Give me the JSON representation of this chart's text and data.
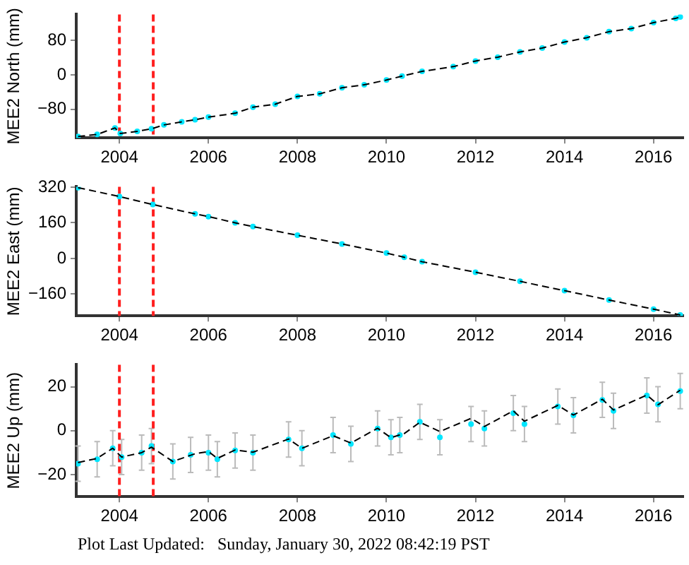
{
  "chart_data": [
    {
      "type": "scatter",
      "ylabel": "MEE2 North (mm)",
      "xlim": [
        2003.03,
        2016.67
      ],
      "xticks": [
        2004,
        2006,
        2008,
        2010,
        2012,
        2014,
        2016
      ],
      "ylim": [
        -146,
        140
      ],
      "yticks": [
        -80,
        0,
        80
      ],
      "grid": false,
      "legend": false,
      "marker": "circle",
      "ref_lines": [
        {
          "axis": "x",
          "value": 2004.0,
          "color": "#ff2020",
          "line_style": "dashed"
        },
        {
          "axis": "x",
          "value": 2004.76,
          "color": "#ff2020",
          "line_style": "dashed"
        }
      ],
      "series": [
        {
          "type": "scatter",
          "color": "#00e6ff",
          "x": [
            2003.07,
            2003.5,
            2003.9,
            2004.02,
            2004.4,
            2004.72,
            2005.0,
            2005.4,
            2005.7,
            2006.0,
            2006.6,
            2007.0,
            2007.5,
            2008.0,
            2008.5,
            2009.0,
            2009.5,
            2010.0,
            2010.35,
            2010.8,
            2011.5,
            2012.0,
            2012.5,
            2013.0,
            2013.5,
            2014.0,
            2014.5,
            2015.0,
            2015.5,
            2016.0,
            2016.5,
            2016.6
          ],
          "values": [
            -143,
            -138,
            -123,
            -136,
            -131,
            -125,
            -116,
            -109,
            -104,
            -98,
            -89,
            -75,
            -68,
            -50,
            -44,
            -30,
            -23,
            -12,
            -3,
            8,
            19,
            32,
            41,
            53,
            62,
            76,
            86,
            100,
            107,
            121,
            131,
            134
          ]
        },
        {
          "type": "line",
          "color": "#000000",
          "line_style": "dashed",
          "marker": "none",
          "x": [
            2003.07,
            2003.5,
            2003.9,
            2004.02,
            2004.4,
            2004.72,
            2005.0,
            2005.4,
            2005.7,
            2006.0,
            2006.6,
            2007.0,
            2007.5,
            2008.0,
            2008.5,
            2009.0,
            2009.5,
            2010.0,
            2010.35,
            2010.8,
            2011.5,
            2012.0,
            2012.5,
            2013.0,
            2013.5,
            2014.0,
            2014.5,
            2015.0,
            2015.5,
            2016.0,
            2016.5,
            2016.6
          ],
          "values": [
            -143,
            -138,
            -123,
            -136,
            -131,
            -125,
            -116,
            -109,
            -104,
            -98,
            -89,
            -75,
            -68,
            -50,
            -44,
            -30,
            -23,
            -12,
            -3,
            8,
            19,
            32,
            41,
            53,
            62,
            76,
            86,
            100,
            107,
            121,
            131,
            134
          ]
        }
      ]
    },
    {
      "type": "scatter",
      "ylabel": "MEE2 East (mm)",
      "xlim": [
        2003.03,
        2016.67
      ],
      "xticks": [
        2004,
        2006,
        2008,
        2010,
        2012,
        2014,
        2016
      ],
      "ylim": [
        -258,
        322
      ],
      "yticks": [
        -160,
        0,
        160,
        320
      ],
      "grid": false,
      "legend": false,
      "marker": "circle",
      "ref_lines": [
        {
          "axis": "x",
          "value": 2004.0,
          "color": "#ff2020",
          "line_style": "dashed"
        },
        {
          "axis": "x",
          "value": 2004.76,
          "color": "#ff2020",
          "line_style": "dashed"
        }
      ],
      "series": [
        {
          "type": "scatter",
          "color": "#00e6ff",
          "x": [
            2003.07,
            2004.0,
            2004.75,
            2005.7,
            2006.0,
            2006.6,
            2007.0,
            2008.0,
            2009.0,
            2010.0,
            2010.4,
            2010.8,
            2012.0,
            2013.0,
            2014.0,
            2015.0,
            2016.0,
            2016.6
          ],
          "values": [
            318,
            278,
            242,
            200,
            188,
            160,
            143,
            104,
            65,
            24,
            5,
            -15,
            -62,
            -103,
            -145,
            -187,
            -228,
            -254
          ]
        },
        {
          "type": "line",
          "color": "#000000",
          "line_style": "dashed",
          "marker": "none",
          "x": [
            2003.07,
            2004.0,
            2004.75,
            2005.7,
            2006.0,
            2006.6,
            2007.0,
            2008.0,
            2009.0,
            2010.0,
            2010.4,
            2010.8,
            2012.0,
            2013.0,
            2014.0,
            2015.0,
            2016.0,
            2016.6
          ],
          "values": [
            318,
            278,
            242,
            200,
            188,
            160,
            143,
            104,
            65,
            24,
            5,
            -15,
            -62,
            -103,
            -145,
            -187,
            -228,
            -254
          ]
        }
      ]
    },
    {
      "type": "scatter",
      "ylabel": "MEE2 Up (mm)",
      "xlim": [
        2003.03,
        2016.67
      ],
      "xticks": [
        2004,
        2006,
        2008,
        2010,
        2012,
        2014,
        2016
      ],
      "ylim": [
        -30,
        30
      ],
      "yticks": [
        -20,
        0,
        20
      ],
      "grid": false,
      "legend": false,
      "marker": "circle",
      "ref_lines": [
        {
          "axis": "x",
          "value": 2004.0,
          "color": "#ff2020",
          "line_style": "dashed"
        },
        {
          "axis": "x",
          "value": 2004.76,
          "color": "#ff2020",
          "line_style": "dashed"
        }
      ],
      "annotations": [
        "Plot Last Updated:   Sunday, January 30, 2022 08:42:19 PST"
      ],
      "series": [
        {
          "type": "scatter",
          "color": "#00e6ff",
          "x": [
            2003.07,
            2003.5,
            2003.85,
            2004.05,
            2004.5,
            2004.72,
            2005.2,
            2005.6,
            2006.0,
            2006.2,
            2006.6,
            2007.0,
            2007.8,
            2008.1,
            2008.8,
            2009.2,
            2009.8,
            2010.1,
            2010.3,
            2010.75,
            2011.2,
            2011.9,
            2012.2,
            2012.85,
            2013.1,
            2013.85,
            2014.2,
            2014.85,
            2015.1,
            2015.85,
            2016.1,
            2016.6
          ],
          "values": [
            -15,
            -13,
            -8,
            -12,
            -10,
            -7,
            -14,
            -11,
            -10,
            -13,
            -9,
            -10,
            -4,
            -8,
            -2,
            -6,
            1,
            -3,
            -2,
            4,
            -3,
            3,
            1,
            8,
            3,
            11,
            7,
            14,
            9,
            16,
            12,
            18
          ],
          "errors": [
            8,
            8,
            8,
            8,
            8,
            8,
            8,
            8,
            8,
            8,
            8,
            8,
            8,
            8,
            8,
            8,
            8,
            8,
            8,
            8,
            8,
            8,
            8,
            8,
            8,
            8,
            8,
            8,
            8,
            8,
            8,
            8
          ]
        },
        {
          "type": "line",
          "color": "#000000",
          "line_style": "dashed",
          "marker": "none",
          "x": [
            2003.07,
            2003.5,
            2003.85,
            2004.05,
            2004.5,
            2004.72,
            2005.2,
            2005.7,
            2006.0,
            2006.2,
            2006.6,
            2007.0,
            2007.8,
            2008.1,
            2008.8,
            2009.2,
            2009.8,
            2010.1,
            2010.4,
            2010.75,
            2011.2,
            2011.9,
            2012.2,
            2012.85,
            2013.1,
            2013.85,
            2014.2,
            2014.85,
            2015.1,
            2015.85,
            2016.1,
            2016.6
          ],
          "values": [
            -14.5,
            -12.6,
            -8,
            -12,
            -10,
            -7.5,
            -14,
            -10.5,
            -9.5,
            -12.6,
            -8.8,
            -9.8,
            -3.8,
            -8,
            -2.3,
            -5.6,
            1.1,
            -3.2,
            -1.3,
            3.8,
            -0.4,
            5.6,
            1.9,
            9,
            4.3,
            11.5,
            7.1,
            14.3,
            9.4,
            16.2,
            11.8,
            18.4
          ]
        }
      ]
    }
  ]
}
